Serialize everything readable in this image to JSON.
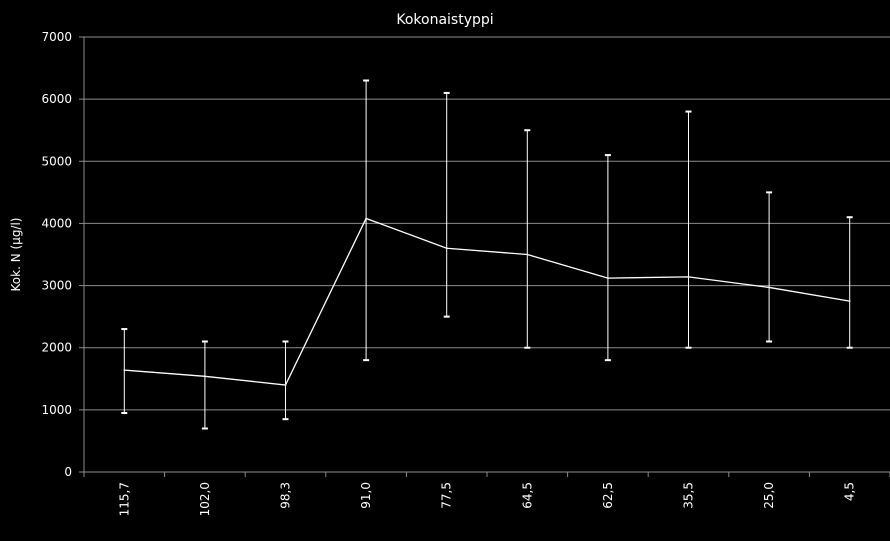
{
  "chart_data": {
    "type": "line",
    "title": "Kokonaistyppi",
    "xlabel": "",
    "ylabel": "Kok. N (µg/l)",
    "categories": [
      "115,7",
      "102,0",
      "98,3",
      "91,0",
      "77,5",
      "64,5",
      "62,5",
      "35,5",
      "25,0",
      "4,5"
    ],
    "series": [
      {
        "values": [
          1640,
          1540,
          1400,
          4080,
          3600,
          3500,
          3120,
          3140,
          2970,
          2750
        ],
        "error_low": [
          950,
          700,
          850,
          1800,
          2500,
          2000,
          1800,
          2000,
          2100,
          2000
        ],
        "error_high": [
          2300,
          2100,
          2100,
          6300,
          6100,
          5500,
          5100,
          5800,
          4500,
          4100
        ]
      }
    ],
    "ylim": [
      0,
      7000
    ],
    "yticks": [
      0,
      1000,
      2000,
      3000,
      4000,
      5000,
      6000,
      7000
    ],
    "grid": true,
    "colors": {
      "background": "#000000",
      "line": "#ffffff",
      "grid": "#8c8c8c",
      "text": "#ffffff"
    }
  }
}
